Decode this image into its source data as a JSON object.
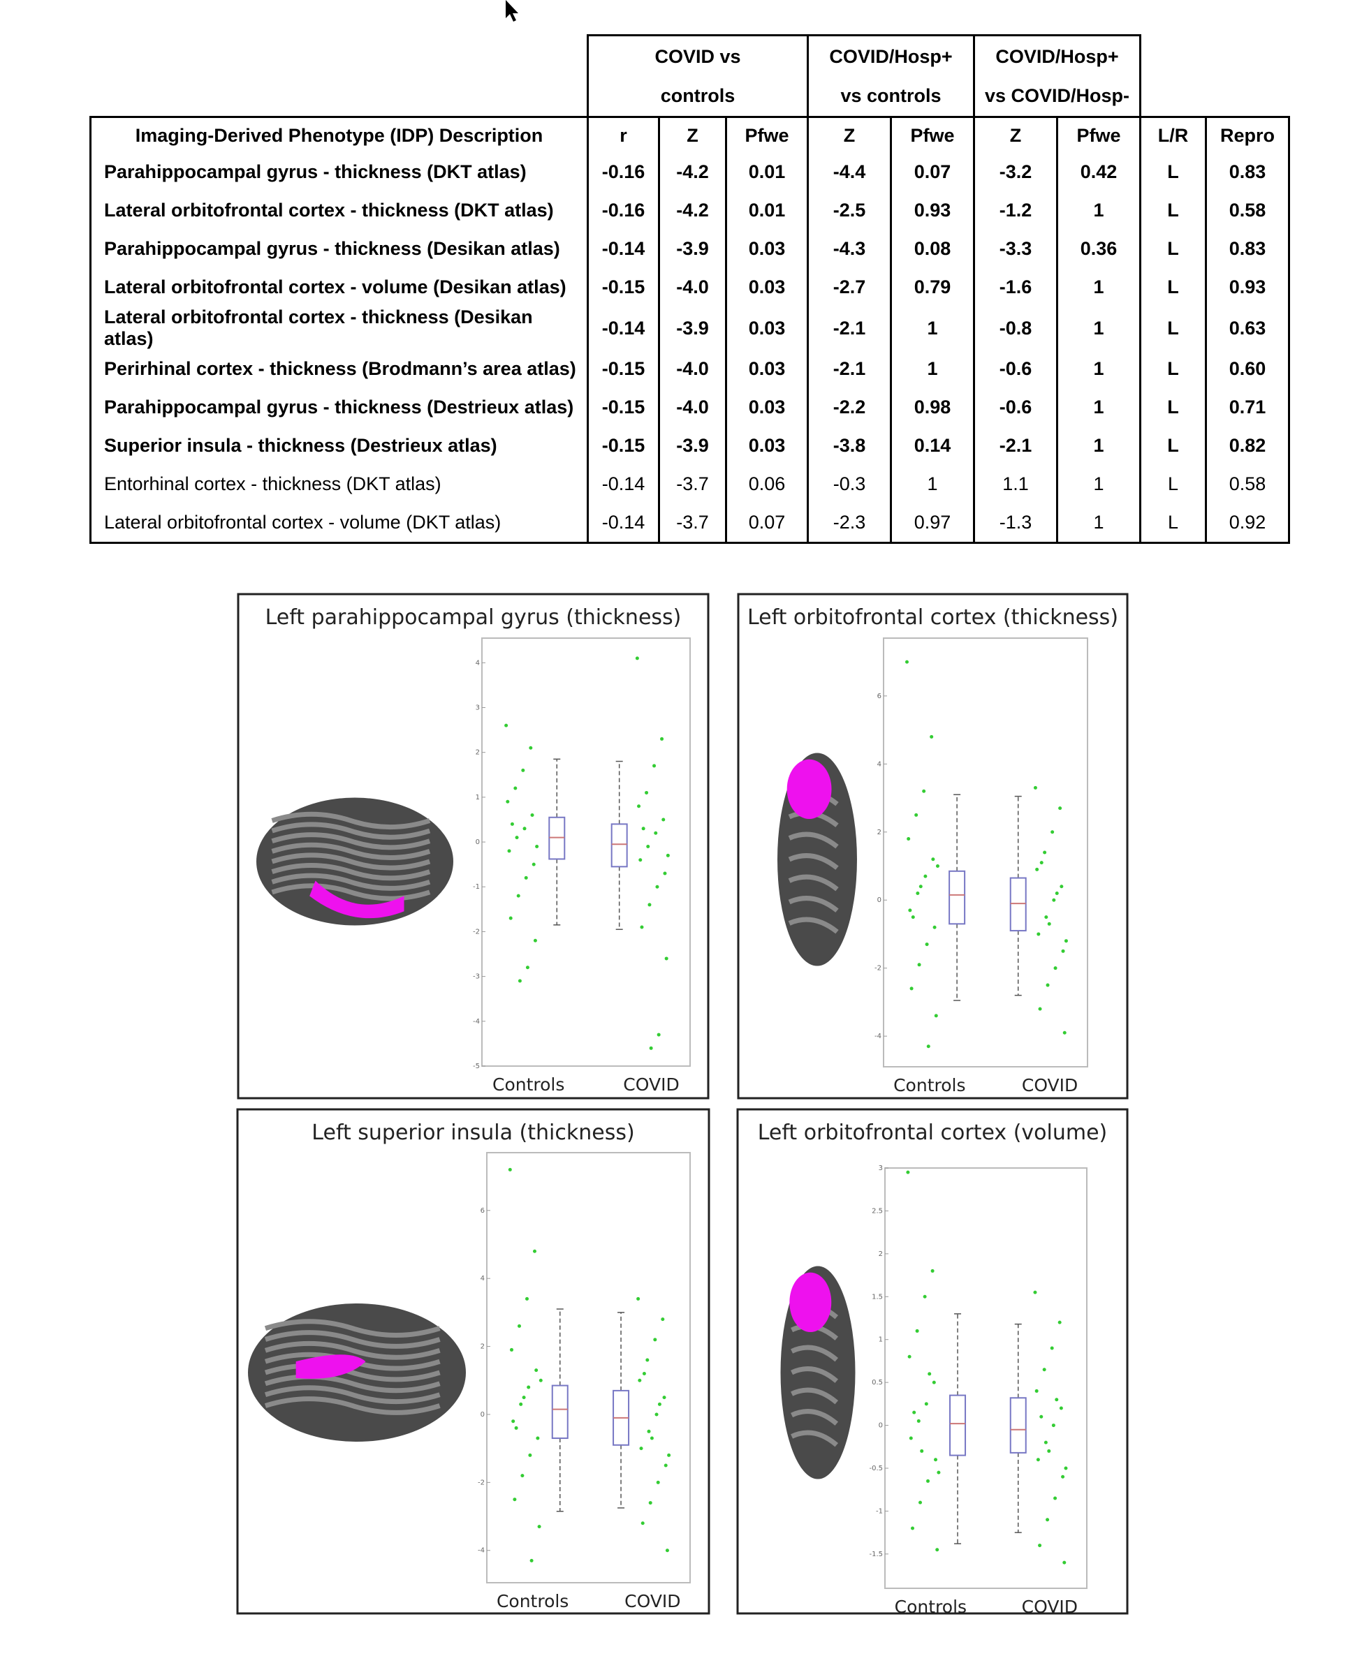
{
  "table": {
    "group_headers": [
      [
        "COVID vs",
        "controls"
      ],
      [
        "COVID/Hosp+",
        "vs controls"
      ],
      [
        "COVID/Hosp+",
        "vs COVID/Hosp-"
      ]
    ],
    "columns": [
      "Imaging-Derived Phenotype (IDP) Description",
      "r",
      "Z",
      "Pfwe",
      "Z",
      "Pfwe",
      "Z",
      "Pfwe",
      "L/R",
      "Repro"
    ],
    "rows": [
      {
        "bold": true,
        "cells": [
          "Parahippocampal gyrus - thickness (DKT atlas)",
          "-0.16",
          "-4.2",
          "0.01",
          "-4.4",
          "0.07",
          "-3.2",
          "0.42",
          "L",
          "0.83"
        ]
      },
      {
        "bold": true,
        "cells": [
          "Lateral orbitofrontal cortex - thickness (DKT atlas)",
          "-0.16",
          "-4.2",
          "0.01",
          "-2.5",
          "0.93",
          "-1.2",
          "1",
          "L",
          "0.58"
        ]
      },
      {
        "bold": true,
        "cells": [
          "Parahippocampal gyrus - thickness (Desikan atlas)",
          "-0.14",
          "-3.9",
          "0.03",
          "-4.3",
          "0.08",
          "-3.3",
          "0.36",
          "L",
          "0.83"
        ]
      },
      {
        "bold": true,
        "cells": [
          "Lateral orbitofrontal cortex - volume (Desikan atlas)",
          "-0.15",
          "-4.0",
          "0.03",
          "-2.7",
          "0.79",
          "-1.6",
          "1",
          "L",
          "0.93"
        ]
      },
      {
        "bold": true,
        "cells": [
          "Lateral orbitofrontal cortex - thickness (Desikan atlas)",
          "-0.14",
          "-3.9",
          "0.03",
          "-2.1",
          "1",
          "-0.8",
          "1",
          "L",
          "0.63"
        ]
      },
      {
        "bold": true,
        "cells": [
          "Perirhinal cortex - thickness (Brodmann’s area atlas)",
          "-0.15",
          "-4.0",
          "0.03",
          "-2.1",
          "1",
          "-0.6",
          "1",
          "L",
          "0.60"
        ]
      },
      {
        "bold": true,
        "cells": [
          "Parahippocampal gyrus - thickness (Destrieux atlas)",
          "-0.15",
          "-4.0",
          "0.03",
          "-2.2",
          "0.98",
          "-0.6",
          "1",
          "L",
          "0.71"
        ]
      },
      {
        "bold": true,
        "cells": [
          "Superior insula - thickness (Destrieux atlas)",
          "-0.15",
          "-3.9",
          "0.03",
          "-3.8",
          "0.14",
          "-2.1",
          "1",
          "L",
          "0.82"
        ]
      },
      {
        "bold": false,
        "cells": [
          "Entorhinal cortex - thickness (DKT atlas)",
          "-0.14",
          "-3.7",
          "0.06",
          "-0.3",
          "1",
          "1.1",
          "1",
          "L",
          "0.58"
        ]
      },
      {
        "bold": false,
        "cells": [
          "Lateral orbitofrontal cortex - volume (DKT atlas)",
          "-0.14",
          "-3.7",
          "0.07",
          "-2.3",
          "0.97",
          "-1.3",
          "1",
          "L",
          "0.92"
        ]
      }
    ]
  },
  "figures": [
    {
      "type": "box",
      "title": "Left parahippocampal gyrus (thickness)",
      "ylim": [
        -5,
        4.55
      ],
      "yticks": [
        -5,
        -4,
        -3,
        -2,
        -1,
        0,
        1,
        2,
        3,
        4
      ],
      "categories": [
        "Controls",
        "COVID"
      ],
      "box_color": "#7777c4",
      "median_color": "#cc7777",
      "point_color": "#33cc33",
      "groups": [
        {
          "median": 0.1,
          "q1": -0.38,
          "q3": 0.55,
          "whisker_low": -1.85,
          "whisker_high": 1.85,
          "points": [
            2.6,
            2.1,
            1.6,
            1.2,
            0.9,
            0.6,
            0.3,
            0.1,
            -0.2,
            -0.5,
            -0.8,
            -1.2,
            -1.7,
            -2.2,
            -2.8,
            -3.1,
            0.4,
            -0.1
          ]
        },
        {
          "median": -0.05,
          "q1": -0.55,
          "q3": 0.4,
          "whisker_low": -1.95,
          "whisker_high": 1.8,
          "points": [
            4.1,
            2.3,
            1.7,
            1.1,
            0.8,
            0.5,
            0.2,
            -0.1,
            -0.4,
            -0.7,
            -1.0,
            -1.4,
            -1.9,
            -2.6,
            -4.3,
            -4.6,
            0.3,
            -0.3
          ]
        }
      ]
    },
    {
      "type": "box",
      "title": "Left orbitofrontal cortex (thickness)",
      "ylim": [
        -4.9,
        7.7
      ],
      "yticks": [
        -4,
        -2,
        0,
        2,
        4,
        6
      ],
      "categories": [
        "Controls",
        "COVID"
      ],
      "box_color": "#7777c4",
      "median_color": "#cc7777",
      "point_color": "#33cc33",
      "groups": [
        {
          "median": 0.15,
          "q1": -0.7,
          "q3": 0.85,
          "whisker_low": -2.95,
          "whisker_high": 3.1,
          "points": [
            7.0,
            4.8,
            3.2,
            2.5,
            1.8,
            1.2,
            0.7,
            0.2,
            -0.3,
            -0.8,
            -1.3,
            -1.9,
            -2.6,
            -3.4,
            -4.3,
            0.4,
            -0.5,
            1.0
          ]
        },
        {
          "median": -0.1,
          "q1": -0.9,
          "q3": 0.65,
          "whisker_low": -2.8,
          "whisker_high": 3.05,
          "points": [
            3.3,
            2.7,
            2.0,
            1.4,
            0.9,
            0.4,
            0.0,
            -0.5,
            -1.0,
            -1.5,
            -2.0,
            -2.5,
            -3.2,
            -3.9,
            0.2,
            -0.7,
            1.1,
            -1.2
          ]
        }
      ]
    },
    {
      "type": "box",
      "title": "Left superior insula (thickness)",
      "ylim": [
        -4.95,
        7.7
      ],
      "yticks": [
        -4,
        -2,
        0,
        2,
        4,
        6
      ],
      "categories": [
        "Controls",
        "COVID"
      ],
      "box_color": "#7777c4",
      "median_color": "#cc7777",
      "point_color": "#33cc33",
      "groups": [
        {
          "median": 0.15,
          "q1": -0.7,
          "q3": 0.85,
          "whisker_low": -2.85,
          "whisker_high": 3.1,
          "points": [
            7.2,
            4.8,
            3.4,
            2.6,
            1.9,
            1.3,
            0.8,
            0.3,
            -0.2,
            -0.7,
            -1.2,
            -1.8,
            -2.5,
            -3.3,
            -4.3,
            0.5,
            -0.4,
            1.0
          ]
        },
        {
          "median": -0.1,
          "q1": -0.9,
          "q3": 0.7,
          "whisker_low": -2.75,
          "whisker_high": 3.0,
          "points": [
            3.4,
            2.8,
            2.2,
            1.6,
            1.0,
            0.5,
            0.0,
            -0.5,
            -1.0,
            -1.5,
            -2.0,
            -2.6,
            -3.2,
            -4.0,
            0.3,
            -0.7,
            1.2,
            -1.2
          ]
        }
      ]
    },
    {
      "type": "box",
      "title": "Left orbitofrontal cortex (volume)",
      "ylim": [
        -1.9,
        3
      ],
      "yticks": [
        -1.5,
        -1,
        -0.5,
        0,
        0.5,
        1,
        1.5,
        2,
        2.5,
        3
      ],
      "categories": [
        "Controls",
        "COVID"
      ],
      "box_color": "#7777c4",
      "median_color": "#cc7777",
      "point_color": "#33cc33",
      "groups": [
        {
          "median": 0.02,
          "q1": -0.35,
          "q3": 0.35,
          "whisker_low": -1.38,
          "whisker_high": 1.3,
          "points": [
            2.95,
            1.8,
            1.5,
            1.1,
            0.8,
            0.5,
            0.25,
            0.05,
            -0.15,
            -0.4,
            -0.65,
            -0.9,
            -1.2,
            -1.45,
            0.6,
            -0.3,
            0.15,
            -0.55
          ]
        },
        {
          "median": -0.05,
          "q1": -0.32,
          "q3": 0.32,
          "whisker_low": -1.25,
          "whisker_high": 1.18,
          "points": [
            1.55,
            1.2,
            0.9,
            0.65,
            0.4,
            0.2,
            0.0,
            -0.2,
            -0.4,
            -0.6,
            -0.85,
            -1.1,
            -1.4,
            -1.6,
            0.3,
            -0.3,
            0.1,
            -0.5
          ]
        }
      ]
    }
  ]
}
